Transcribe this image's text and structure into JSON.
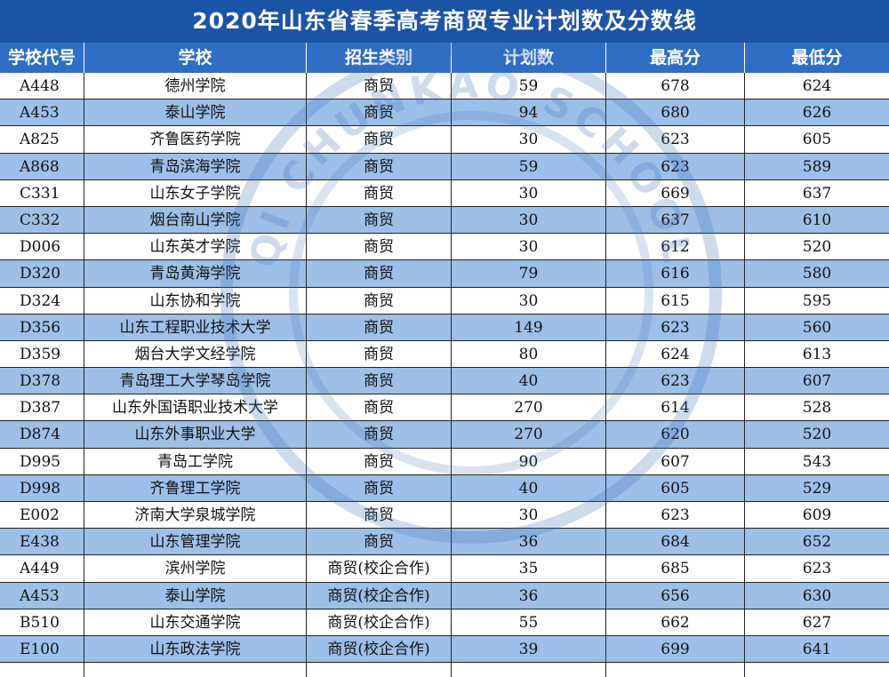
{
  "title": "2020年山东省春季高考商贸专业计划数及分数线",
  "headers": [
    "学校代号",
    "学校",
    "招生类别",
    "计划数",
    "最高分",
    "最低分"
  ],
  "rows": [
    [
      "A448",
      "德州学院",
      "商贸",
      "59",
      "678",
      "624"
    ],
    [
      "A453",
      "泰山学院",
      "商贸",
      "94",
      "680",
      "626"
    ],
    [
      "A825",
      "齐鲁医药学院",
      "商贸",
      "30",
      "623",
      "605"
    ],
    [
      "A868",
      "青岛滨海学院",
      "商贸",
      "59",
      "623",
      "589"
    ],
    [
      "C331",
      "山东女子学院",
      "商贸",
      "30",
      "669",
      "637"
    ],
    [
      "C332",
      "烟台南山学院",
      "商贸",
      "30",
      "637",
      "610"
    ],
    [
      "D006",
      "山东英才学院",
      "商贸",
      "30",
      "612",
      "520"
    ],
    [
      "D320",
      "青岛黄海学院",
      "商贸",
      "79",
      "616",
      "580"
    ],
    [
      "D324",
      "山东协和学院",
      "商贸",
      "30",
      "615",
      "595"
    ],
    [
      "D356",
      "山东工程职业技术大学",
      "商贸",
      "149",
      "623",
      "560"
    ],
    [
      "D359",
      "烟台大学文经学院",
      "商贸",
      "80",
      "624",
      "613"
    ],
    [
      "D378",
      "青岛理工大学琴岛学院",
      "商贸",
      "40",
      "623",
      "607"
    ],
    [
      "D387",
      "山东外国语职业技术大学",
      "商贸",
      "270",
      "614",
      "528"
    ],
    [
      "D874",
      "山东外事职业大学",
      "商贸",
      "270",
      "620",
      "520"
    ],
    [
      "D995",
      "青岛工学院",
      "商贸",
      "90",
      "607",
      "543"
    ],
    [
      "D998",
      "齐鲁理工学院",
      "商贸",
      "40",
      "605",
      "529"
    ],
    [
      "E002",
      "济南大学泉城学院",
      "商贸",
      "30",
      "623",
      "609"
    ],
    [
      "E438",
      "山东管理学院",
      "商贸",
      "36",
      "684",
      "652"
    ],
    [
      "A449",
      "滨州学院",
      "商贸(校企合作)",
      "35",
      "685",
      "623"
    ],
    [
      "A453",
      "泰山学院",
      "商贸(校企合作)",
      "36",
      "656",
      "630"
    ],
    [
      "B510",
      "山东交通学院",
      "商贸(校企合作)",
      "55",
      "662",
      "627"
    ],
    [
      "E100",
      "山东政法学院",
      "商贸(校企合作)",
      "39",
      "699",
      "641"
    ]
  ],
  "watermark_text": "QI CHUNKAO SCHOOL",
  "colors": {
    "title_bg": "#1c54a8",
    "header_bg": "#2e6ec4",
    "stripe": "#9cc0e8"
  }
}
